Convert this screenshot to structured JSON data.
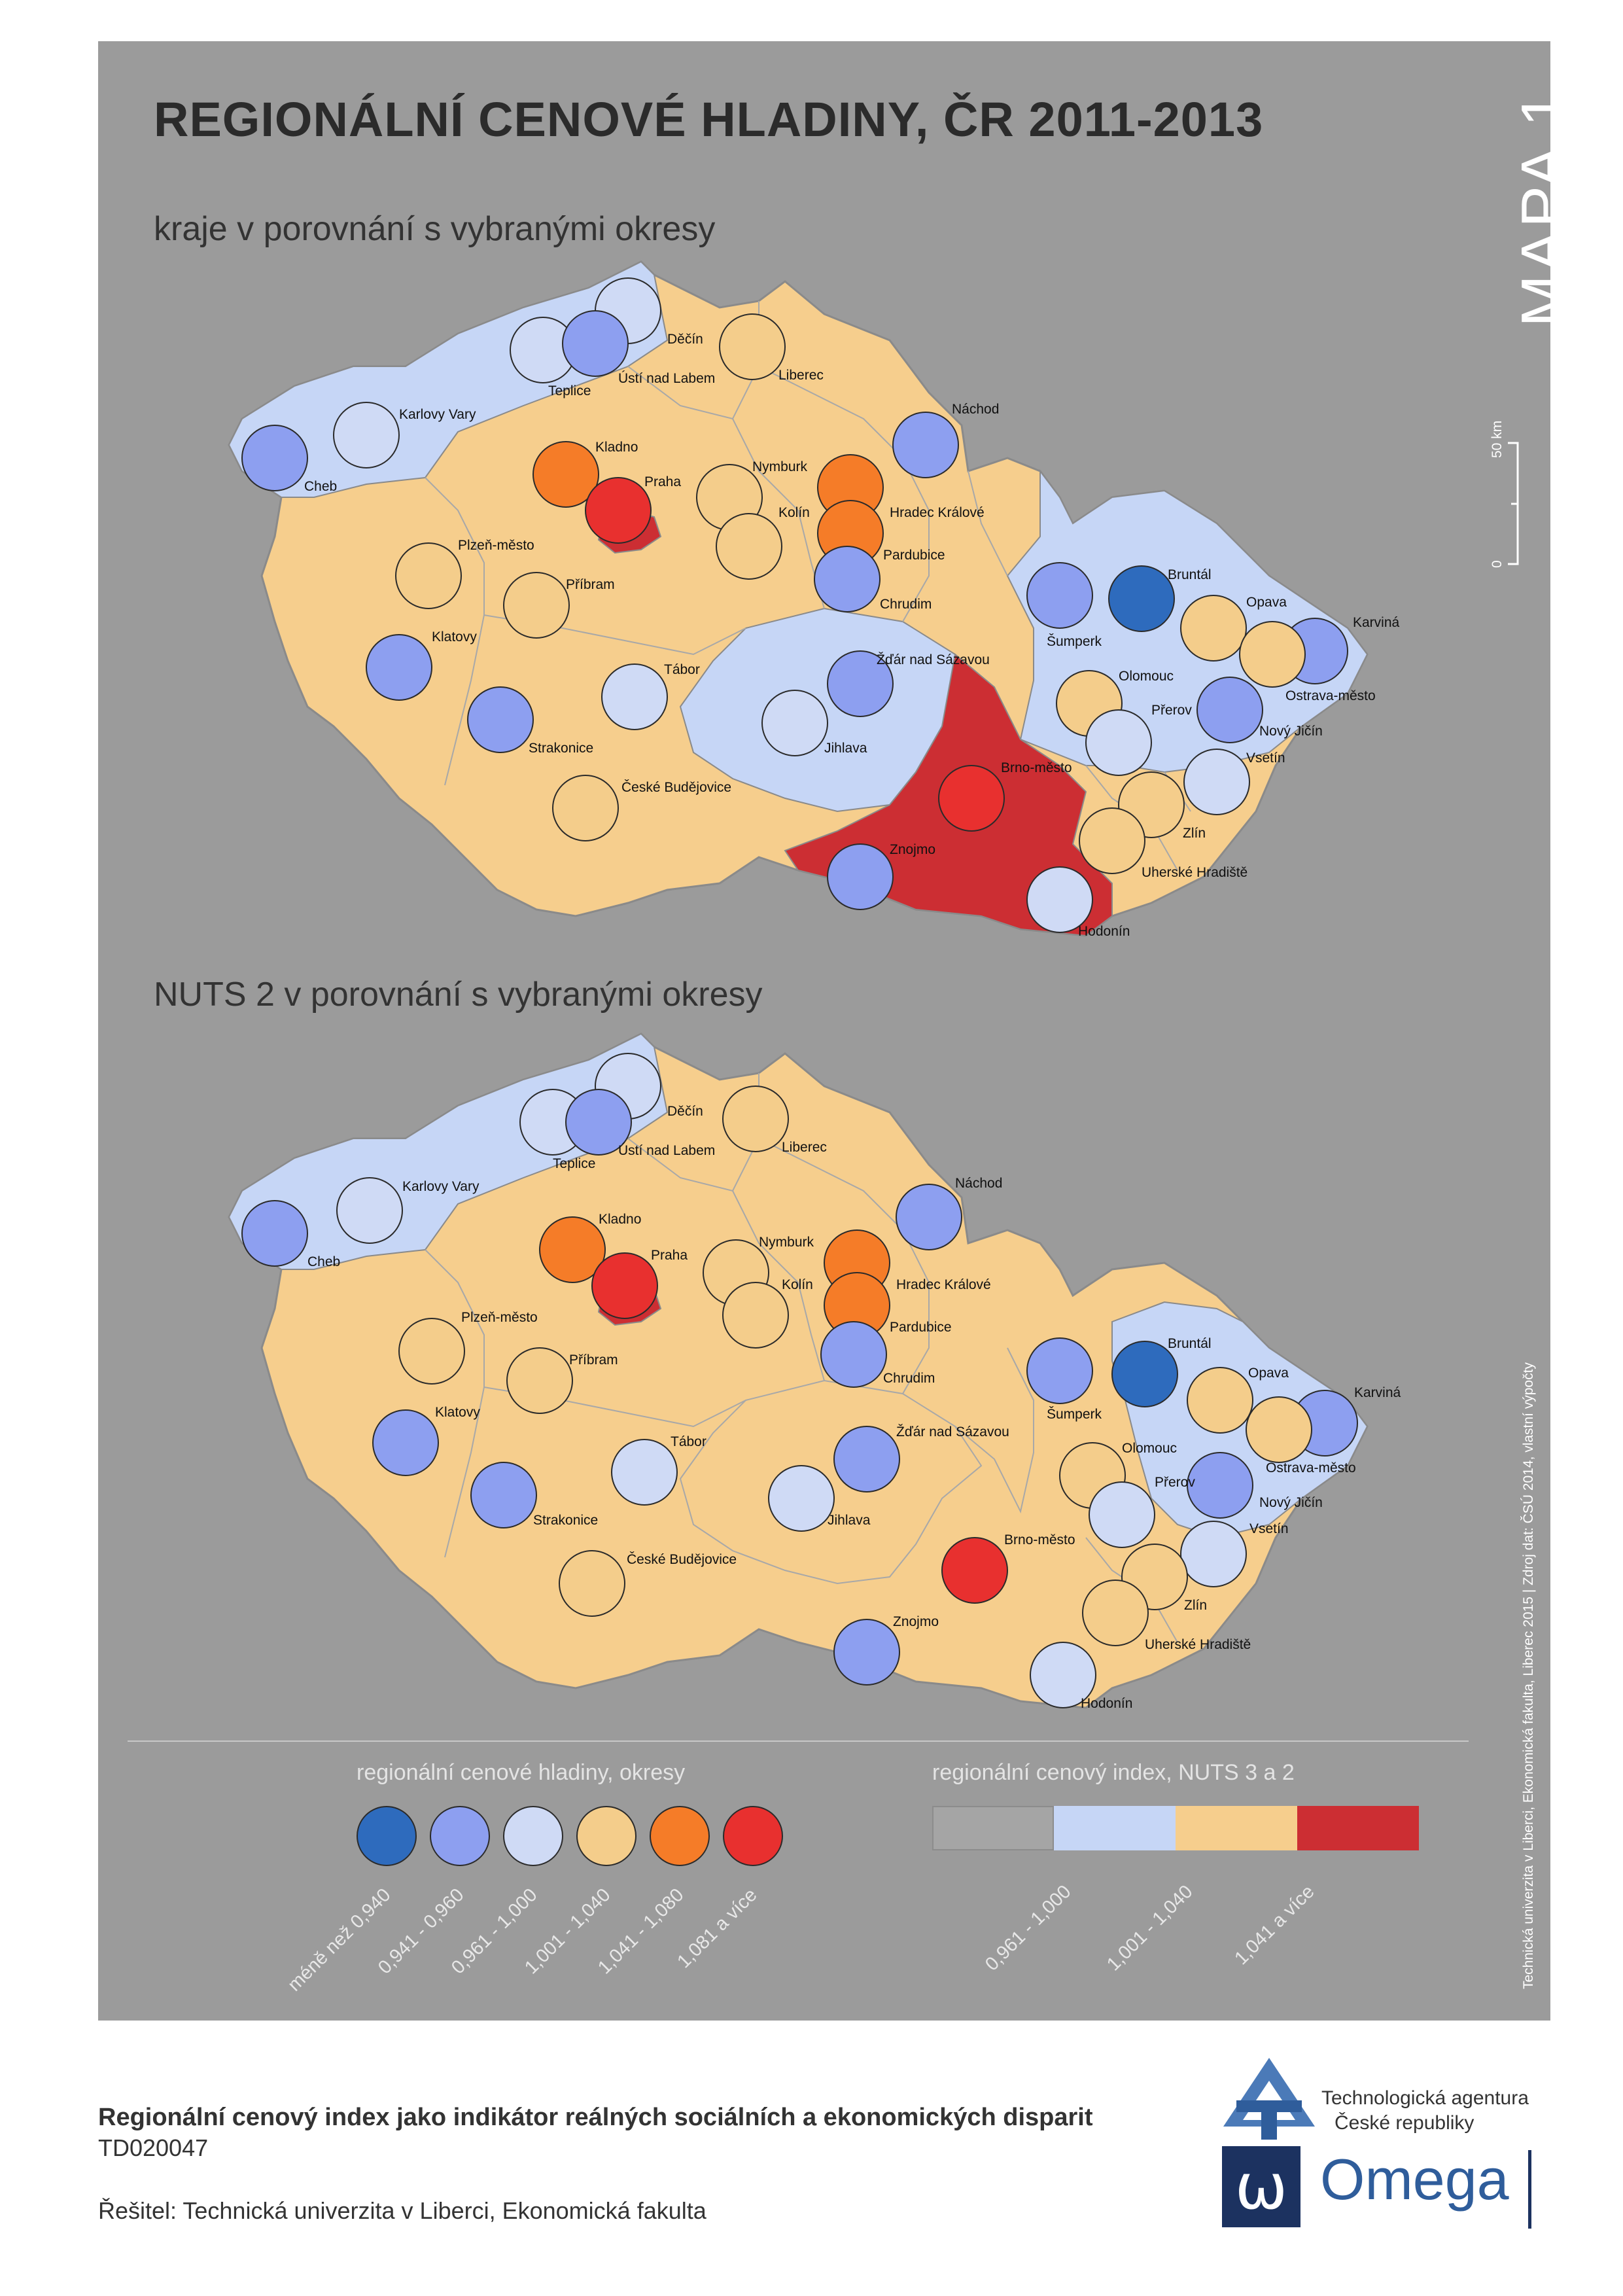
{
  "title": "REGIONÁLNÍ CENOVÉ HLADINY, ČR 2011-2013",
  "map_label": "MAPA 1",
  "subtitles": {
    "top": "kraje v porovnání s vybranými okresy",
    "bottom": "NUTS 2 v porovnání s vybranými okresy"
  },
  "scale_bar": {
    "zero": "0",
    "fifty": "50 km"
  },
  "source_note": "Technická univerzita v Liberci, Ekonomická fakulta, Liberec 2015 | Zdroj dat: ČSÚ 2014, vlastní výpočty",
  "colors": {
    "panel": "#9b9b9b",
    "region_low": "#c6d6f6",
    "region_mid": "#f6ce8d",
    "region_high": "#cc2e33",
    "circle_lt_0940": "#2e6bbd",
    "circle_0941_0960": "#8d9ff0",
    "circle_0961_1000": "#cfdaf5",
    "circle_1001_1040": "#f4cd8b",
    "circle_1041_1080": "#f57c28",
    "circle_1081_up": "#e8302f",
    "region_below": "#a5a5a5"
  },
  "legend": {
    "districts_title": "regionální cenové hladiny, okresy",
    "districts": [
      {
        "label": "méně než 0,940",
        "color": "#2e6bbd"
      },
      {
        "label": "0,941 - 0,960",
        "color": "#8d9ff0"
      },
      {
        "label": "0,961 - 1,000",
        "color": "#cfdaf5"
      },
      {
        "label": "1,001 - 1,040",
        "color": "#f4cd8b"
      },
      {
        "label": "1,041 - 1,080",
        "color": "#f57c28"
      },
      {
        "label": "1,081 a více",
        "color": "#e8302f"
      }
    ],
    "regions_title": "regionální cenový index, NUTS 3 a 2",
    "regions": [
      {
        "label": "",
        "color": "#a5a5a5"
      },
      {
        "label": "0,961 - 1,000",
        "color": "#c6d6f6"
      },
      {
        "label": "1,001 - 1,040",
        "color": "#f6ce8d"
      },
      {
        "label": "1,041 a více",
        "color": "#cc2e33"
      }
    ]
  },
  "maps": [
    {
      "id": "kraje",
      "districts": [
        {
          "name": "Cheb",
          "class": "circle_0941_0960"
        },
        {
          "name": "Karlovy Vary",
          "class": "circle_0961_1000"
        },
        {
          "name": "Teplice",
          "class": "circle_0961_1000"
        },
        {
          "name": "Ústí nad Labem",
          "class": "circle_0941_0960"
        },
        {
          "name": "Děčín",
          "class": "circle_0961_1000"
        },
        {
          "name": "Liberec",
          "class": "circle_1001_1040"
        },
        {
          "name": "Náchod",
          "class": "circle_0941_0960"
        },
        {
          "name": "Kladno",
          "class": "circle_1041_1080"
        },
        {
          "name": "Praha",
          "class": "circle_1081_up"
        },
        {
          "name": "Nymburk",
          "class": "circle_1001_1040"
        },
        {
          "name": "Kolín",
          "class": "circle_1001_1040"
        },
        {
          "name": "Hradec Králové",
          "class": "circle_1041_1080"
        },
        {
          "name": "Pardubice",
          "class": "circle_1041_1080"
        },
        {
          "name": "Chrudim",
          "class": "circle_0941_0960"
        },
        {
          "name": "Plzeň-město",
          "class": "circle_1001_1040"
        },
        {
          "name": "Příbram",
          "class": "circle_1001_1040"
        },
        {
          "name": "Klatovy",
          "class": "circle_0941_0960"
        },
        {
          "name": "Tábor",
          "class": "circle_0961_1000"
        },
        {
          "name": "Žďár nad Sázavou",
          "class": "circle_0941_0960"
        },
        {
          "name": "Jihlava",
          "class": "circle_0961_1000"
        },
        {
          "name": "Strakonice",
          "class": "circle_0941_0960"
        },
        {
          "name": "České Budějovice",
          "class": "circle_1001_1040"
        },
        {
          "name": "Brno-město",
          "class": "circle_1081_up"
        },
        {
          "name": "Znojmo",
          "class": "circle_0941_0960"
        },
        {
          "name": "Hodonín",
          "class": "circle_0961_1000"
        },
        {
          "name": "Šumperk",
          "class": "circle_0941_0960"
        },
        {
          "name": "Bruntál",
          "class": "circle_lt_0940"
        },
        {
          "name": "Opava",
          "class": "circle_1001_1040"
        },
        {
          "name": "Karviná",
          "class": "circle_0941_0960"
        },
        {
          "name": "Ostrava-město",
          "class": "circle_1001_1040"
        },
        {
          "name": "Olomouc",
          "class": "circle_1001_1040"
        },
        {
          "name": "Přerov",
          "class": "circle_0961_1000"
        },
        {
          "name": "Nový Jičín",
          "class": "circle_0941_0960"
        },
        {
          "name": "Vsetín",
          "class": "circle_0961_1000"
        },
        {
          "name": "Zlín",
          "class": "circle_1001_1040"
        },
        {
          "name": "Uherské Hradiště",
          "class": "circle_1001_1040"
        }
      ]
    },
    {
      "id": "nuts2",
      "districts": [
        {
          "name": "Cheb",
          "class": "circle_0941_0960"
        },
        {
          "name": "Karlovy Vary",
          "class": "circle_0961_1000"
        },
        {
          "name": "Teplice",
          "class": "circle_0961_1000"
        },
        {
          "name": "Ústí nad Labem",
          "class": "circle_0941_0960"
        },
        {
          "name": "Děčín",
          "class": "circle_0961_1000"
        },
        {
          "name": "Liberec",
          "class": "circle_1001_1040"
        },
        {
          "name": "Náchod",
          "class": "circle_0941_0960"
        },
        {
          "name": "Kladno",
          "class": "circle_1041_1080"
        },
        {
          "name": "Praha",
          "class": "circle_1081_up"
        },
        {
          "name": "Nymburk",
          "class": "circle_1001_1040"
        },
        {
          "name": "Kolín",
          "class": "circle_1001_1040"
        },
        {
          "name": "Hradec Králové",
          "class": "circle_1041_1080"
        },
        {
          "name": "Pardubice",
          "class": "circle_1041_1080"
        },
        {
          "name": "Chrudim",
          "class": "circle_0941_0960"
        },
        {
          "name": "Plzeň-město",
          "class": "circle_1001_1040"
        },
        {
          "name": "Příbram",
          "class": "circle_1001_1040"
        },
        {
          "name": "Klatovy",
          "class": "circle_0941_0960"
        },
        {
          "name": "Tábor",
          "class": "circle_0961_1000"
        },
        {
          "name": "Žďár nad Sázavou",
          "class": "circle_0941_0960"
        },
        {
          "name": "Jihlava",
          "class": "circle_0961_1000"
        },
        {
          "name": "Strakonice",
          "class": "circle_0941_0960"
        },
        {
          "name": "České Budějovice",
          "class": "circle_1001_1040"
        },
        {
          "name": "Brno-město",
          "class": "circle_1081_up"
        },
        {
          "name": "Znojmo",
          "class": "circle_0941_0960"
        },
        {
          "name": "Hodonín",
          "class": "circle_0961_1000"
        },
        {
          "name": "Šumperk",
          "class": "circle_0941_0960"
        },
        {
          "name": "Bruntál",
          "class": "circle_lt_0940"
        },
        {
          "name": "Opava",
          "class": "circle_1001_1040"
        },
        {
          "name": "Karviná",
          "class": "circle_0941_0960"
        },
        {
          "name": "Ostrava-město",
          "class": "circle_1001_1040"
        },
        {
          "name": "Olomouc",
          "class": "circle_1001_1040"
        },
        {
          "name": "Přerov",
          "class": "circle_0961_1000"
        },
        {
          "name": "Nový Jičín",
          "class": "circle_0941_0960"
        },
        {
          "name": "Vsetín",
          "class": "circle_0961_1000"
        },
        {
          "name": "Zlín",
          "class": "circle_1001_1040"
        },
        {
          "name": "Uherské Hradiště",
          "class": "circle_1001_1040"
        }
      ]
    }
  ],
  "footer": {
    "project_title": "Regionální cenový index jako indikátor reálných sociálních a ekonomických disparit",
    "project_code": "TD020047",
    "author": "Řešitel: Technická univerzita v Liberci, Ekonomická fakulta",
    "tacr_line1": "Technologická agentura",
    "tacr_line2": "České republiky",
    "omega_letter": "ω",
    "omega_word": "Omega"
  }
}
